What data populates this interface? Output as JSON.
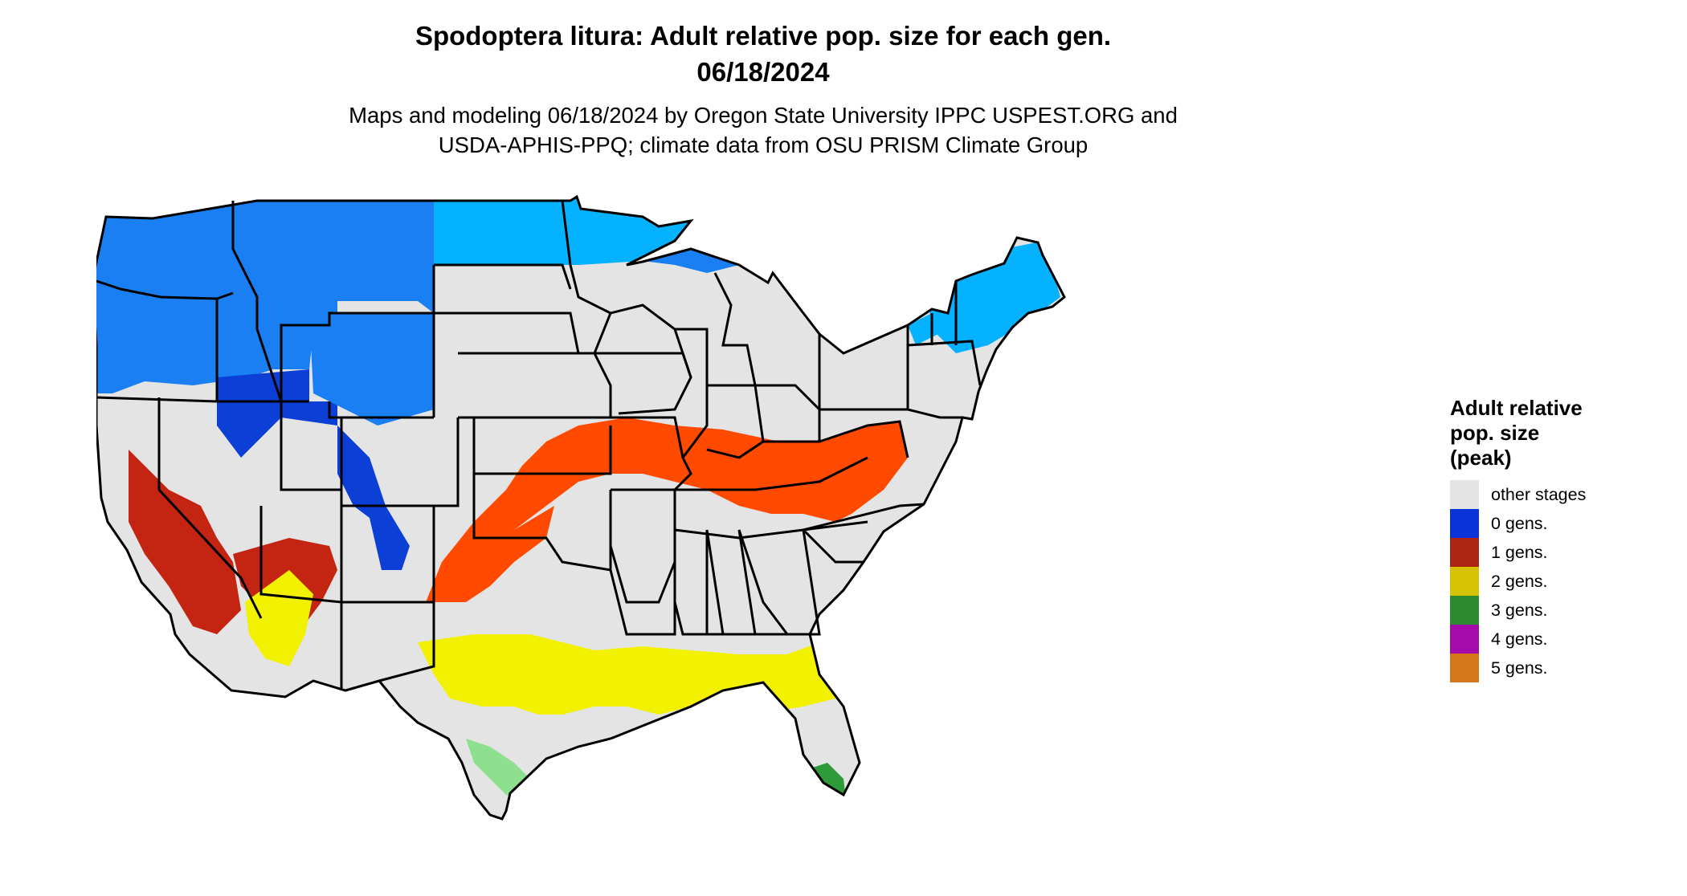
{
  "title": {
    "line1": "Spodoptera litura: Adult relative pop. size for each gen.",
    "line2": "06/18/2024"
  },
  "subtitle": {
    "line1": "Maps and modeling 06/18/2024 by Oregon State University IPPC USPEST.ORG and",
    "line2": "USDA-APHIS-PPQ; climate data from OSU PRISM Climate Group"
  },
  "legend": {
    "title": "Adult relative\npop. size\n(peak)",
    "items": [
      {
        "label": "other stages",
        "color": "#e4e4e4"
      },
      {
        "label": "0 gens.",
        "color": "#0a33d9"
      },
      {
        "label": "1 gens.",
        "color": "#ad2514"
      },
      {
        "label": "2 gens.",
        "color": "#d6c200"
      },
      {
        "label": "3 gens.",
        "color": "#2e8a2e"
      },
      {
        "label": "4 gens.",
        "color": "#a50aab"
      },
      {
        "label": "5 gens.",
        "color": "#d6761a"
      }
    ]
  },
  "map_colors": {
    "background": "#e4e4e4",
    "gen0_light": "#05b2ff",
    "gen0_mid": "#1a7ff2",
    "gen0_dark": "#0b3fd6",
    "gen1_light": "#ff4a00",
    "gen1_dark": "#c42412",
    "gen2": "#f2f200",
    "gen3_dark": "#2e9a3a",
    "gen3_light": "#8ee08e",
    "gen4": "#d41ad9",
    "borders": "#000000"
  }
}
